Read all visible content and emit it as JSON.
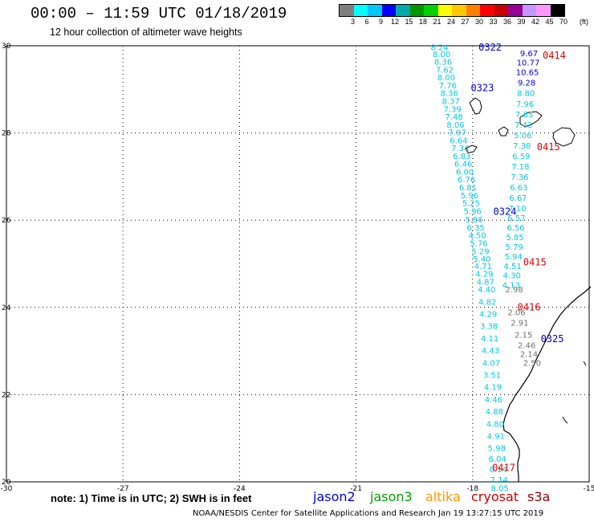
{
  "header": {
    "title": "00:00 – 11:59 UTC 01/18/2019",
    "subtitle": "12 hour collection of altimeter wave heights"
  },
  "legend": {
    "colors": [
      "#808080",
      "#00ffff",
      "#00c8ff",
      "#0000ff",
      "#00aaaa",
      "#009600",
      "#00d200",
      "#ffff00",
      "#ffc800",
      "#ff8000",
      "#ff0000",
      "#c80000",
      "#960096",
      "#c896ff",
      "#ff96ff",
      "#000000"
    ],
    "labels": [
      "3",
      "6",
      "9",
      "12",
      "15",
      "18",
      "21",
      "24",
      "27",
      "30",
      "33",
      "36",
      "39",
      "42",
      "45",
      "70",
      "(ft)"
    ]
  },
  "axes": {
    "lat_labels": [
      "30",
      "28",
      "26",
      "24",
      "22",
      "20"
    ],
    "lon_labels": [
      "-30",
      "-27",
      "-24",
      "-21",
      "-18",
      "-15"
    ]
  },
  "chart_data": {
    "type": "scatter",
    "x_range": [
      -30,
      -15
    ],
    "y_range": [
      20,
      30
    ],
    "tracks": [
      {
        "id": "track-jason3-cyan",
        "color": "#00c8e6",
        "points": [
          {
            "lon": -18.85,
            "lat": 29.95,
            "v": "8.24"
          },
          {
            "lon": -18.8,
            "lat": 29.8,
            "v": "8.00"
          },
          {
            "lon": -18.76,
            "lat": 29.62,
            "v": "8.36"
          },
          {
            "lon": -18.72,
            "lat": 29.44,
            "v": "7.62"
          },
          {
            "lon": -18.68,
            "lat": 29.26,
            "v": "8.00"
          },
          {
            "lon": -18.64,
            "lat": 29.08,
            "v": "7.76"
          },
          {
            "lon": -18.6,
            "lat": 28.9,
            "v": "8.36"
          },
          {
            "lon": -18.56,
            "lat": 28.72,
            "v": "8.37"
          },
          {
            "lon": -18.52,
            "lat": 28.54,
            "v": "7.39"
          },
          {
            "lon": -18.48,
            "lat": 28.36,
            "v": "7.48"
          },
          {
            "lon": -18.44,
            "lat": 28.18,
            "v": "8.06"
          },
          {
            "lon": -18.4,
            "lat": 28.0,
            "v": "7.97"
          },
          {
            "lon": -18.36,
            "lat": 27.82,
            "v": "6.64"
          },
          {
            "lon": -18.32,
            "lat": 27.64,
            "v": "7.34"
          },
          {
            "lon": -18.28,
            "lat": 27.46,
            "v": "6.83"
          },
          {
            "lon": -18.24,
            "lat": 27.28,
            "v": "6.46"
          },
          {
            "lon": -18.2,
            "lat": 27.1,
            "v": "6.00"
          },
          {
            "lon": -18.16,
            "lat": 26.92,
            "v": "6.76"
          },
          {
            "lon": -18.12,
            "lat": 26.74,
            "v": "6.81"
          },
          {
            "lon": -18.08,
            "lat": 26.56,
            "v": "5.96"
          },
          {
            "lon": -18.04,
            "lat": 26.38,
            "v": "5.25"
          },
          {
            "lon": -18.0,
            "lat": 26.2,
            "v": "5.96"
          },
          {
            "lon": -17.96,
            "lat": 26.0,
            "v": "5.86"
          },
          {
            "lon": -17.92,
            "lat": 25.82,
            "v": "6.35"
          },
          {
            "lon": -17.88,
            "lat": 25.64,
            "v": "4.50"
          },
          {
            "lon": -17.84,
            "lat": 25.46,
            "v": "5.76"
          },
          {
            "lon": -17.8,
            "lat": 25.28,
            "v": "5.29"
          },
          {
            "lon": -17.76,
            "lat": 25.1,
            "v": "5.40"
          },
          {
            "lon": -17.73,
            "lat": 24.94,
            "v": "4.71"
          },
          {
            "lon": -17.7,
            "lat": 24.76,
            "v": "4.29"
          },
          {
            "lon": -17.67,
            "lat": 24.58,
            "v": "4.87"
          },
          {
            "lon": -17.64,
            "lat": 24.4,
            "v": "4.40"
          },
          {
            "lon": -17.62,
            "lat": 24.12,
            "v": "4.82"
          },
          {
            "lon": -17.6,
            "lat": 23.84,
            "v": "4.29"
          },
          {
            "lon": -17.58,
            "lat": 23.56,
            "v": "3.38"
          },
          {
            "lon": -17.56,
            "lat": 23.28,
            "v": "4.11"
          },
          {
            "lon": -17.54,
            "lat": 23.0,
            "v": "4.43"
          },
          {
            "lon": -17.52,
            "lat": 22.72,
            "v": "4.07"
          },
          {
            "lon": -17.5,
            "lat": 22.44,
            "v": "3.51"
          },
          {
            "lon": -17.48,
            "lat": 22.16,
            "v": "4.19"
          },
          {
            "lon": -17.46,
            "lat": 21.88,
            "v": "4.46"
          },
          {
            "lon": -17.44,
            "lat": 21.6,
            "v": "4.88"
          },
          {
            "lon": -17.42,
            "lat": 21.32,
            "v": "4.80"
          },
          {
            "lon": -17.4,
            "lat": 21.04,
            "v": "4.91"
          },
          {
            "lon": -17.38,
            "lat": 20.76,
            "v": "5.98"
          },
          {
            "lon": -17.36,
            "lat": 20.52,
            "v": "6.04"
          },
          {
            "lon": -17.34,
            "lat": 20.28,
            "v": "6.14"
          },
          {
            "lon": -17.32,
            "lat": 20.04,
            "v": "7.14"
          },
          {
            "lon": -17.3,
            "lat": 19.84,
            "v": "8.05"
          }
        ]
      },
      {
        "id": "track-jason2-blue",
        "color": "#0000dc",
        "points": [
          {
            "lon": -16.55,
            "lat": 29.82,
            "v": "9.67"
          },
          {
            "lon": -16.57,
            "lat": 29.6,
            "v": "10.77"
          },
          {
            "lon": -16.59,
            "lat": 29.38,
            "v": "10.65"
          },
          {
            "lon": -16.61,
            "lat": 29.14,
            "v": "9.28"
          }
        ]
      },
      {
        "id": "track-jason3-cyan-2",
        "color": "#00c8e6",
        "points": [
          {
            "lon": -16.63,
            "lat": 28.9,
            "v": "8.80"
          },
          {
            "lon": -16.65,
            "lat": 28.66,
            "v": "7.96"
          },
          {
            "lon": -16.67,
            "lat": 28.42,
            "v": "7.85"
          },
          {
            "lon": -16.69,
            "lat": 28.18,
            "v": "7.43"
          },
          {
            "lon": -16.71,
            "lat": 27.94,
            "v": "5.06"
          },
          {
            "lon": -16.73,
            "lat": 27.7,
            "v": "7.38"
          },
          {
            "lon": -16.75,
            "lat": 27.46,
            "v": "6.59"
          },
          {
            "lon": -16.77,
            "lat": 27.22,
            "v": "7.18"
          },
          {
            "lon": -16.79,
            "lat": 26.98,
            "v": "7.36"
          },
          {
            "lon": -16.81,
            "lat": 26.74,
            "v": "6.63"
          },
          {
            "lon": -16.83,
            "lat": 26.5,
            "v": "6.67"
          },
          {
            "lon": -16.85,
            "lat": 26.26,
            "v": "7.10"
          },
          {
            "lon": -16.87,
            "lat": 26.04,
            "v": "6.57"
          },
          {
            "lon": -16.89,
            "lat": 25.82,
            "v": "6.56"
          },
          {
            "lon": -16.91,
            "lat": 25.6,
            "v": "5.85"
          },
          {
            "lon": -16.93,
            "lat": 25.38,
            "v": "5.79"
          },
          {
            "lon": -16.95,
            "lat": 25.16,
            "v": "5.94"
          },
          {
            "lon": -16.97,
            "lat": 24.94,
            "v": "4.51"
          },
          {
            "lon": -16.99,
            "lat": 24.72,
            "v": "4.30"
          },
          {
            "lon": -17.01,
            "lat": 24.5,
            "v": "4.13"
          }
        ]
      },
      {
        "id": "track-s3a-gray",
        "color": "#707070",
        "points": [
          {
            "lon": -16.93,
            "lat": 24.4,
            "v": "2.98"
          },
          {
            "lon": -16.87,
            "lat": 23.88,
            "v": "2.06"
          },
          {
            "lon": -16.79,
            "lat": 23.64,
            "v": "2.91"
          },
          {
            "lon": -16.69,
            "lat": 23.36,
            "v": "2.15"
          },
          {
            "lon": -16.61,
            "lat": 23.12,
            "v": "2.46"
          },
          {
            "lon": -16.55,
            "lat": 22.92,
            "v": "2.14"
          },
          {
            "lon": -16.47,
            "lat": 22.72,
            "v": "2.50"
          }
        ]
      }
    ],
    "pass_labels": [
      {
        "lon": -17.55,
        "lat": 29.96,
        "text": "0322",
        "color": "#0000dc"
      },
      {
        "lon": -15.9,
        "lat": 29.78,
        "text": "0414",
        "color": "#e00000"
      },
      {
        "lon": -17.75,
        "lat": 29.03,
        "text": "0323",
        "color": "#0000dc"
      },
      {
        "lon": -16.05,
        "lat": 27.68,
        "text": "0415",
        "color": "#e00000"
      },
      {
        "lon": -17.17,
        "lat": 26.2,
        "text": "0324",
        "color": "#0000dc"
      },
      {
        "lon": -16.4,
        "lat": 25.04,
        "text": "0415",
        "color": "#e00000"
      },
      {
        "lon": -16.55,
        "lat": 24.01,
        "text": "0416",
        "color": "#e00000"
      },
      {
        "lon": -15.95,
        "lat": 23.28,
        "text": "0325",
        "color": "#0000dc"
      },
      {
        "lon": -17.2,
        "lat": 20.32,
        "text": "0417",
        "color": "#e00000"
      }
    ]
  },
  "footer": {
    "note": "note: 1) Time is in UTC; 2) SWH is in feet",
    "satellites": [
      {
        "name": "jason2",
        "color": "#0000dc",
        "left": 390
      },
      {
        "name": "jason3",
        "color": "#00a000",
        "left": 461
      },
      {
        "name": "altika",
        "color": "#ff9600",
        "left": 530
      },
      {
        "name": "cryosat",
        "color": "#c80000",
        "left": 587
      },
      {
        "name": "s3a",
        "color": "#8b0000",
        "left": 657
      }
    ],
    "credit": "NOAA/NESDIS Center for Satellite Applications and Research   Jan 19 13:27:15 UTC 2019"
  }
}
